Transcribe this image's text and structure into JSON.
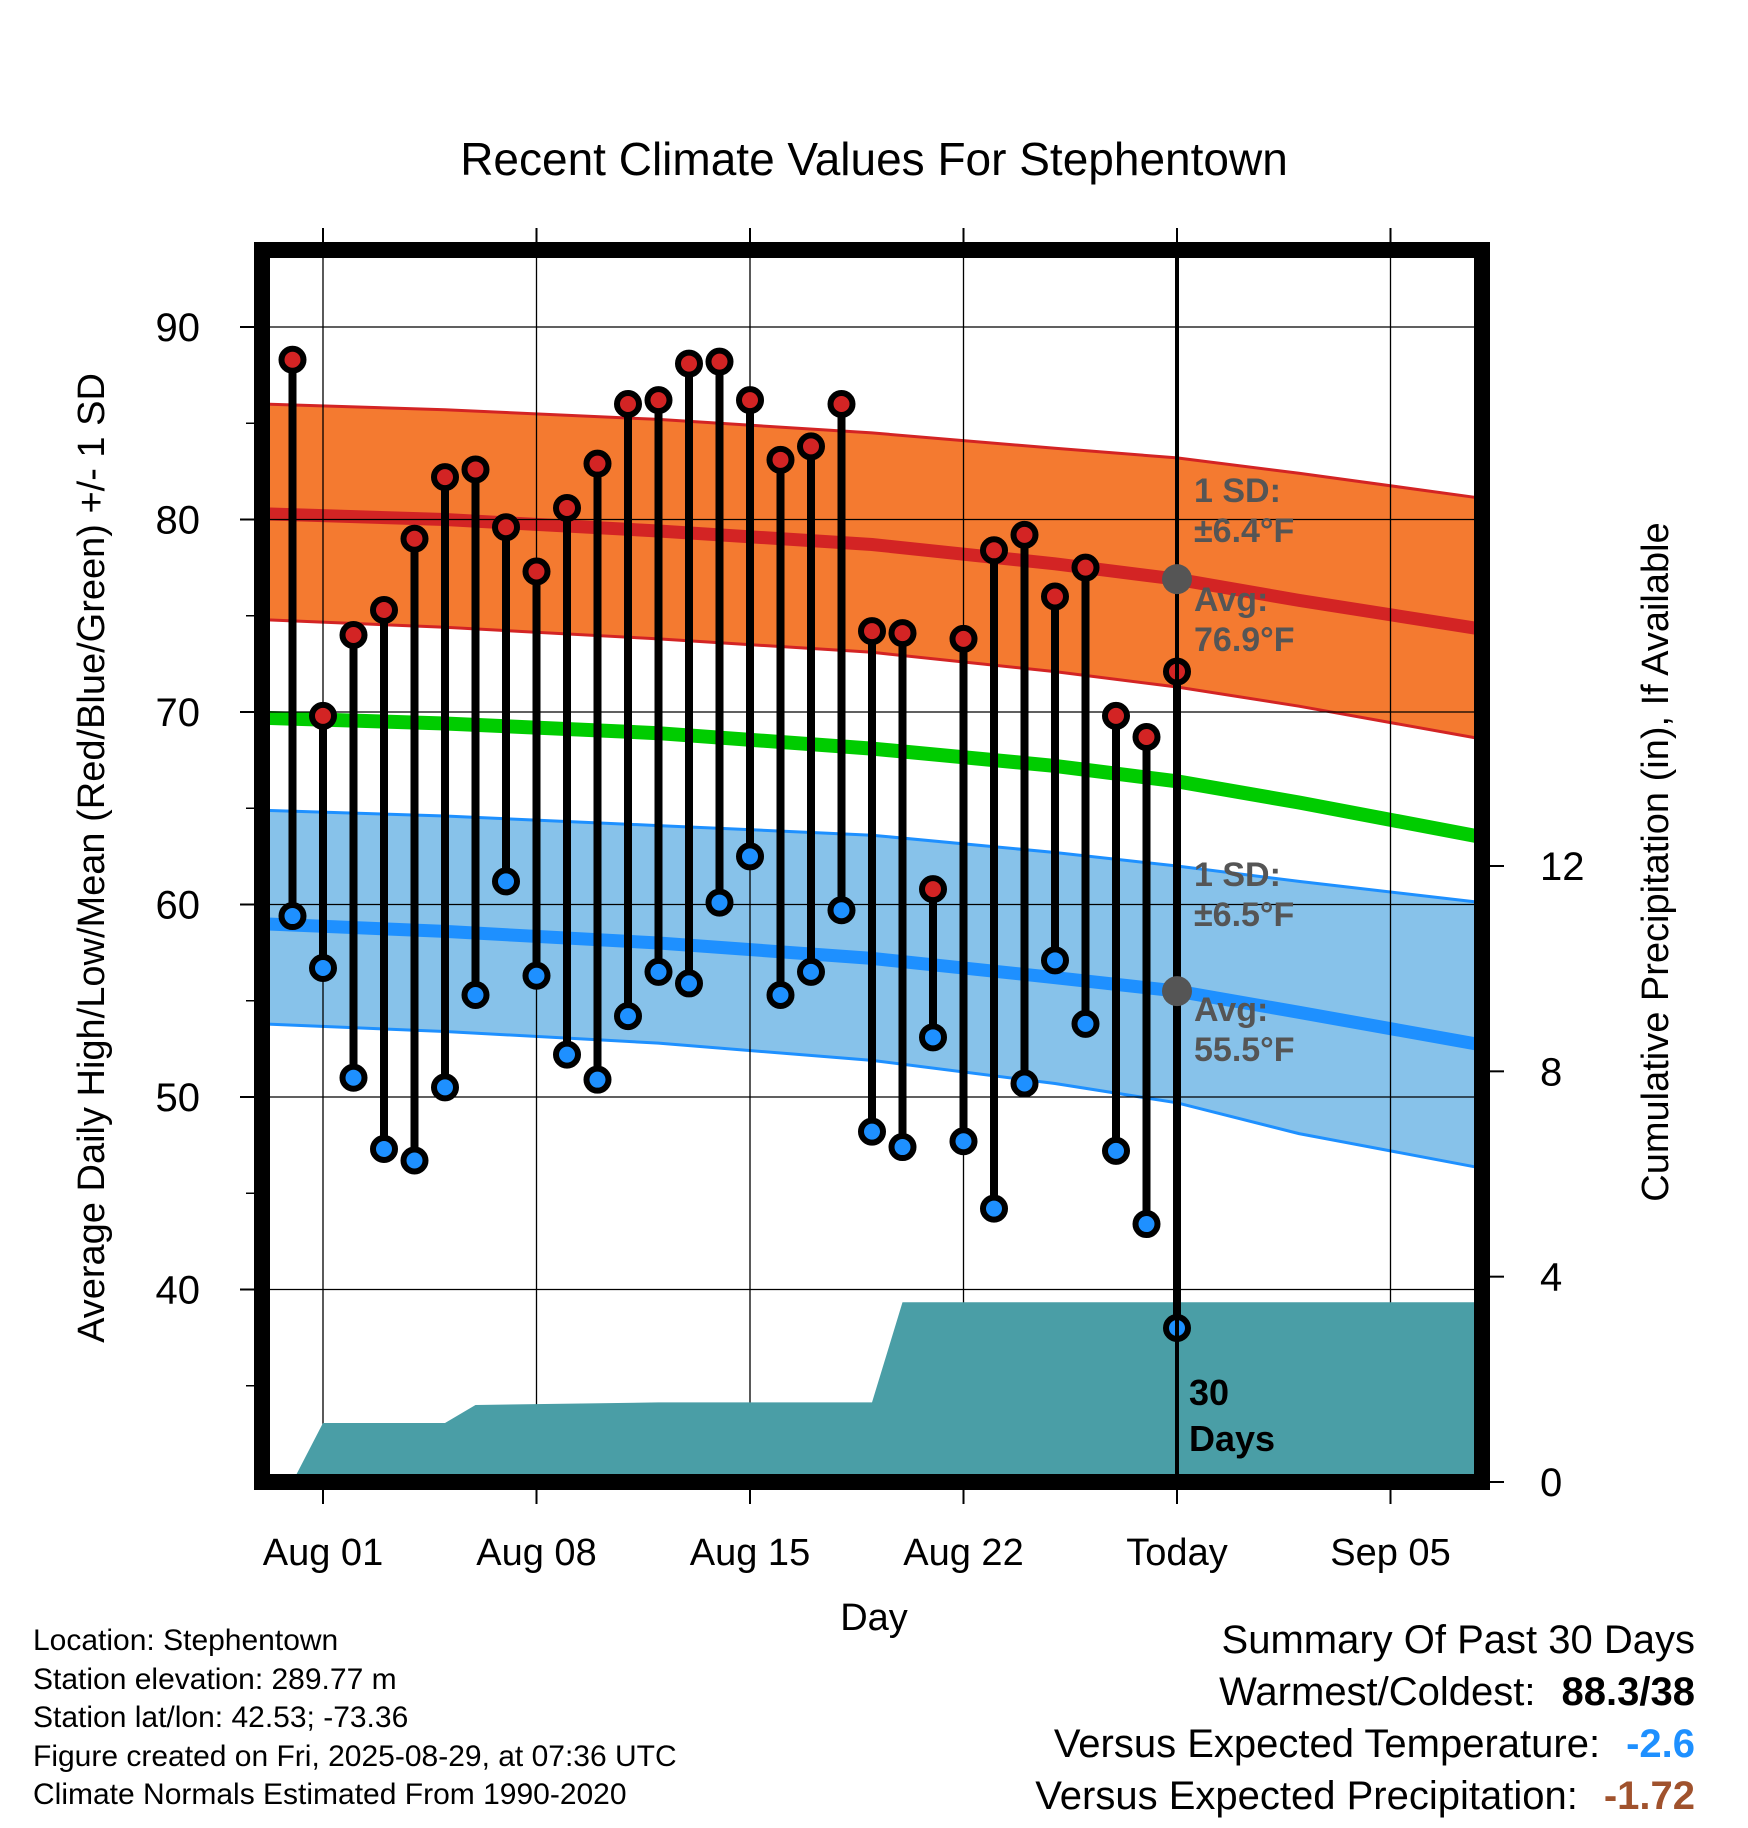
{
  "chart_data": {
    "type": "line",
    "title": "Recent Climate Values For Stephentown",
    "xlabel": "Day",
    "ylabel": "Average Daily High/Low/Mean (Red/Blue/Green) +/- 1 SD",
    "y2label": "Cumulative Precipitation (in), If Available",
    "ylim": [
      30,
      94
    ],
    "y2lim": [
      0,
      24
    ],
    "yticks": [
      "40",
      "50",
      "60",
      "70",
      "80",
      "90"
    ],
    "y2ticks": [
      "0",
      "4",
      "8",
      "12"
    ],
    "xticks": [
      "Aug 01",
      "Aug 08",
      "Aug 15",
      "Aug 22",
      "Today",
      "Sep 05"
    ],
    "x_start": "2025-07-30",
    "x_end": "2025-09-08",
    "today": "2025-08-29",
    "grid": true,
    "observed": {
      "dates": [
        "2025-07-31",
        "2025-08-01",
        "2025-08-02",
        "2025-08-03",
        "2025-08-04",
        "2025-08-05",
        "2025-08-06",
        "2025-08-07",
        "2025-08-08",
        "2025-08-09",
        "2025-08-10",
        "2025-08-11",
        "2025-08-12",
        "2025-08-13",
        "2025-08-14",
        "2025-08-15",
        "2025-08-16",
        "2025-08-17",
        "2025-08-18",
        "2025-08-19",
        "2025-08-20",
        "2025-08-21",
        "2025-08-22",
        "2025-08-23",
        "2025-08-24",
        "2025-08-25",
        "2025-08-26",
        "2025-08-27",
        "2025-08-28",
        "2025-08-29"
      ],
      "high": [
        88.3,
        69.8,
        74.0,
        75.3,
        79.0,
        82.2,
        82.6,
        79.6,
        77.3,
        80.6,
        82.9,
        86.0,
        86.2,
        88.1,
        88.2,
        86.2,
        83.1,
        83.8,
        86.0,
        74.2,
        74.1,
        60.8,
        73.8,
        78.4,
        79.2,
        76.0,
        77.5,
        69.8,
        68.7,
        72.1
      ],
      "low": [
        59.4,
        56.7,
        51.0,
        47.3,
        46.7,
        50.5,
        55.3,
        61.2,
        56.3,
        52.2,
        50.9,
        54.2,
        56.5,
        55.9,
        60.1,
        62.5,
        55.3,
        56.5,
        59.7,
        48.2,
        47.4,
        53.1,
        47.7,
        44.2,
        50.7,
        57.1,
        53.8,
        47.2,
        43.4,
        38.0
      ]
    },
    "normals": {
      "dates": [
        "2025-07-30",
        "2025-08-05",
        "2025-08-12",
        "2025-08-19",
        "2025-08-25",
        "2025-08-29",
        "2025-09-02",
        "2025-09-08"
      ],
      "mean_high": [
        80.3,
        80.0,
        79.4,
        78.7,
        77.7,
        76.9,
        75.8,
        74.3
      ],
      "high_upper": [
        86.0,
        85.7,
        85.2,
        84.5,
        83.7,
        83.2,
        82.4,
        81.1
      ],
      "high_lower": [
        74.8,
        74.4,
        73.8,
        73.1,
        72.1,
        71.3,
        70.3,
        68.6
      ],
      "mean": [
        69.7,
        69.4,
        68.9,
        68.1,
        67.2,
        66.4,
        65.3,
        63.5
      ],
      "mean_low": [
        59.0,
        58.6,
        58.0,
        57.2,
        56.2,
        55.5,
        54.4,
        52.7
      ],
      "low_upper": [
        64.9,
        64.6,
        64.1,
        63.6,
        62.7,
        62.0,
        61.2,
        60.1
      ],
      "low_lower": [
        53.8,
        53.4,
        52.8,
        51.9,
        50.7,
        49.7,
        48.1,
        46.3
      ]
    },
    "precipitation": {
      "dates": [
        "2025-07-31",
        "2025-08-01",
        "2025-08-05",
        "2025-08-06",
        "2025-08-12",
        "2025-08-19",
        "2025-08-20",
        "2025-09-08"
      ],
      "cumulative": [
        0.0,
        1.15,
        1.15,
        1.5,
        1.55,
        1.55,
        3.5,
        3.5
      ],
      "label": "30 Days"
    },
    "annotations": [
      {
        "text": "1 SD:",
        "text2": "±6.4°F",
        "series": "high"
      },
      {
        "text": "Avg:",
        "text2": "76.9°F",
        "series": "high"
      },
      {
        "text": "1 SD:",
        "text2": "±6.5°F",
        "series": "low"
      },
      {
        "text": "Avg:",
        "text2": "55.5°F",
        "series": "low"
      }
    ],
    "colors": {
      "high_band": "#f47a30",
      "high_edge": "#d32424",
      "high_mean": "#d32424",
      "low_band": "#87c2ea",
      "low_edge": "#1e90ff",
      "low_mean": "#1e90ff",
      "mean": "#00cc00",
      "precip": "#4a9ea6",
      "high_dot": "#d32424",
      "low_dot": "#1e90ff",
      "today_dot": "#555555",
      "annotation": "#555555"
    }
  },
  "footer": {
    "location": "Location: Stephentown",
    "elevation": "Station elevation: 289.77 m",
    "latlon": "Station lat/lon: 42.53; -73.36",
    "created": "Figure created on Fri, 2025-08-29, at 07:36 UTC",
    "normals": "Climate Normals Estimated From 1990-2020"
  },
  "summary": {
    "title": "Summary Of Past 30 Days",
    "warmest_label": "Warmest/Coldest:",
    "warmest_value": "88.3/38",
    "temp_label": "Versus Expected Temperature:",
    "temp_value": "-2.6",
    "temp_color": "#1e90ff",
    "precip_label": "Versus Expected Precipitation:",
    "precip_value": "-1.72",
    "precip_color": "#a0522d"
  }
}
